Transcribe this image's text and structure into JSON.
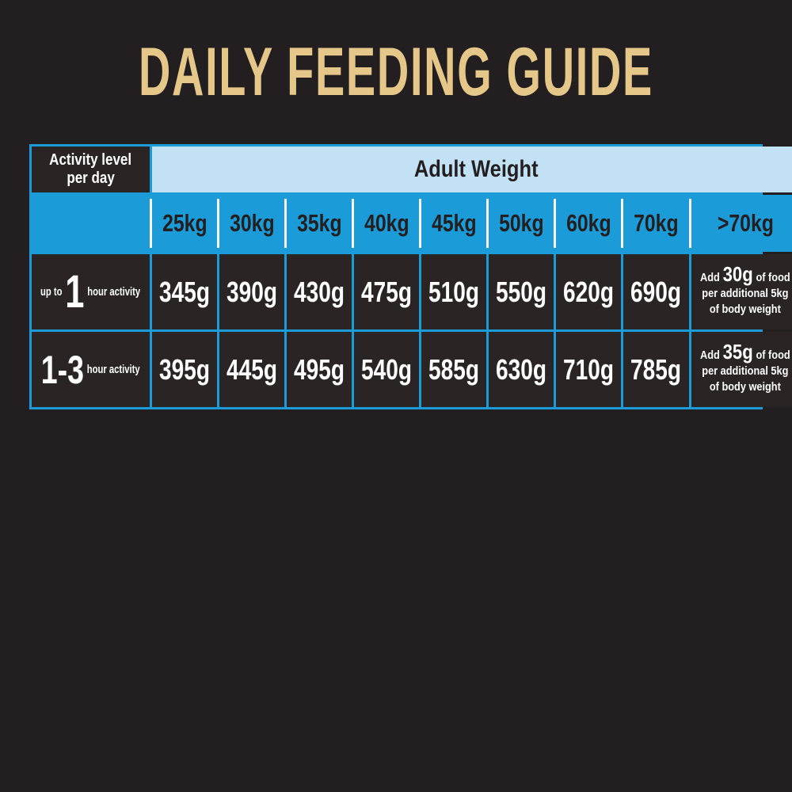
{
  "title": "DAILY FEEDING GUIDE",
  "colors": {
    "background": "#231F20",
    "title_gold": "#E5C78A",
    "light_blue": "#C3E1F4",
    "accent_blue": "#1B9BD8",
    "cell_dark": "#2A2425",
    "text_dark": "#231F20",
    "text_white": "#FFFFFF"
  },
  "table": {
    "corner": {
      "line1": "Activity level",
      "line2": "per day"
    },
    "weight_header": "Adult Weight",
    "weights": [
      "25kg",
      "30kg",
      "35kg",
      "40kg",
      "45kg",
      "50kg",
      "60kg",
      "70kg",
      ">70kg"
    ],
    "rows": [
      {
        "label_prefix": "up to",
        "label_big": "1",
        "label_suffix": "hour activity",
        "values": [
          "345g",
          "390g",
          "430g",
          "475g",
          "510g",
          "550g",
          "620g",
          "690g"
        ],
        "note": {
          "pre": "Add",
          "big": "30g",
          "post": "of food",
          "line2": "per additional 5kg",
          "line3": "of body weight"
        }
      },
      {
        "label_big": "1-3",
        "label_suffix": "hour activity",
        "values": [
          "395g",
          "445g",
          "495g",
          "540g",
          "585g",
          "630g",
          "710g",
          "785g"
        ],
        "note": {
          "pre": "Add",
          "big": "35g",
          "post": "of food",
          "line2": "per additional 5kg",
          "line3": "of body weight"
        }
      }
    ]
  },
  "chart_data": {
    "type": "table",
    "title": "DAILY FEEDING GUIDE",
    "columns": [
      "Activity level per day",
      "25kg",
      "30kg",
      "35kg",
      "40kg",
      "45kg",
      "50kg",
      "60kg",
      "70kg",
      ">70kg"
    ],
    "rows": [
      [
        "up to 1 hour activity",
        "345g",
        "390g",
        "430g",
        "475g",
        "510g",
        "550g",
        "620g",
        "690g",
        "Add 30g of food per additional 5kg of body weight"
      ],
      [
        "1-3 hour activity",
        "395g",
        "445g",
        "495g",
        "540g",
        "585g",
        "630g",
        "710g",
        "785g",
        "Add 35g of food per additional 5kg of body weight"
      ]
    ]
  }
}
